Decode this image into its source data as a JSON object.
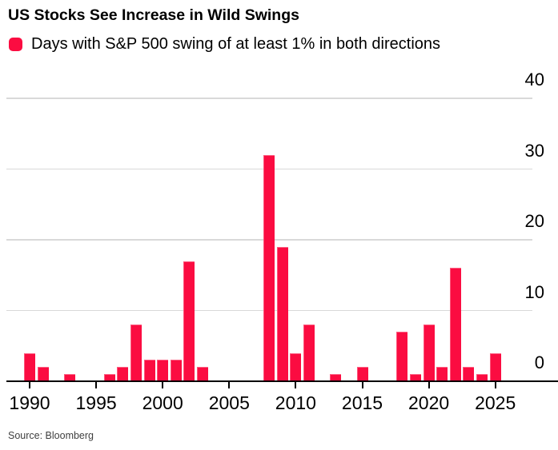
{
  "title": "US Stocks See Increase in Wild Swings",
  "legend": {
    "label": "Days with S&P 500 swing of at least 1% in both directions"
  },
  "source": "Source: Bloomberg",
  "colors": {
    "bar": "#fb0c41",
    "grid": "#d9d9d9",
    "axis": "#000000",
    "text": "#000000",
    "source_text": "#3f3f3f",
    "background": "#ffffff"
  },
  "chart_data": {
    "type": "bar",
    "title": "US Stocks See Increase in Wild Swings",
    "legend_entries": [
      "Days with S&P 500 swing of at least 1% in both directions"
    ],
    "legend_position": "top-left",
    "xlabel": "",
    "ylabel": "",
    "ylim": [
      0,
      40
    ],
    "yticks": [
      0,
      10,
      20,
      30,
      40
    ],
    "xticks": [
      1990,
      1995,
      2000,
      2005,
      2010,
      2015,
      2020,
      2025
    ],
    "grid": "horizontal",
    "x": [
      1990,
      1991,
      1992,
      1993,
      1994,
      1995,
      1996,
      1997,
      1998,
      1999,
      2000,
      2001,
      2002,
      2003,
      2004,
      2005,
      2006,
      2007,
      2008,
      2009,
      2010,
      2011,
      2012,
      2013,
      2014,
      2015,
      2016,
      2017,
      2018,
      2019,
      2020,
      2021,
      2022,
      2023,
      2024,
      2025
    ],
    "values": [
      4,
      2,
      0,
      1,
      0,
      0,
      1,
      2,
      8,
      3,
      3,
      3,
      17,
      2,
      0,
      0,
      0,
      0,
      32,
      19,
      4,
      8,
      0,
      1,
      0,
      2,
      0,
      0,
      7,
      1,
      8,
      2,
      16,
      2,
      1,
      4
    ]
  }
}
